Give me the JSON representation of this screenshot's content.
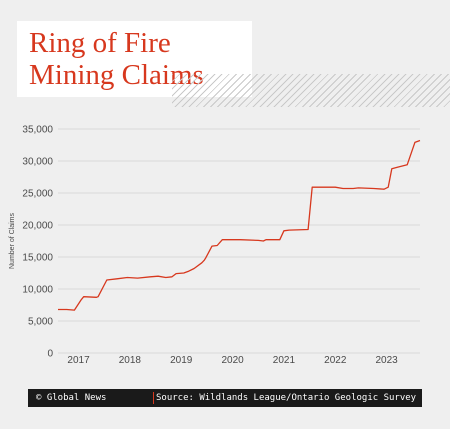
{
  "title": {
    "line1": "Ring of Fire",
    "line2": "Mining Claims"
  },
  "colors": {
    "accent": "#d7381e",
    "grid": "#dadada",
    "text": "#4a4a4a",
    "background": "#efefef"
  },
  "footer": {
    "credit": "© Global News",
    "source": "Source: Wildlands League/Ontario Geologic Survey"
  },
  "chart_data": {
    "type": "line",
    "title": "Ring of Fire Mining Claims",
    "xlabel": "",
    "ylabel": "Number of Claims",
    "xlim": [
      2016.6,
      2023.65
    ],
    "ylim": [
      0,
      35000
    ],
    "grid": true,
    "legend": "none",
    "y_ticks": [
      0,
      5000,
      10000,
      15000,
      20000,
      25000,
      30000,
      35000
    ],
    "y_tick_labels": [
      "0",
      "5,000",
      "10,000",
      "15,000",
      "20,000",
      "25,000",
      "30,000",
      "35,000"
    ],
    "x_ticks": [
      2017,
      2018,
      2019,
      2020,
      2021,
      2022,
      2023
    ],
    "x_tick_labels": [
      "2017",
      "2018",
      "2019",
      "2020",
      "2021",
      "2022",
      "2023"
    ],
    "series": [
      {
        "name": "",
        "x": [
          2016.6,
          2016.77,
          2016.92,
          2017.05,
          2017.1,
          2017.35,
          2017.38,
          2017.55,
          2017.75,
          2017.95,
          2018.15,
          2018.4,
          2018.55,
          2018.7,
          2018.82,
          2018.9,
          2019.05,
          2019.15,
          2019.25,
          2019.4,
          2019.45,
          2019.48,
          2019.6,
          2019.7,
          2019.8,
          2020.15,
          2020.5,
          2020.6,
          2020.65,
          2020.92,
          2021.0,
          2021.1,
          2021.47,
          2021.55,
          2021.62,
          2021.65,
          2022.0,
          2022.15,
          2022.35,
          2022.45,
          2022.75,
          2022.95,
          2023.03,
          2023.1,
          2023.2,
          2023.4,
          2023.55,
          2023.65
        ],
        "values": [
          6800,
          6800,
          6700,
          8300,
          8800,
          8700,
          8800,
          11400,
          11600,
          11800,
          11700,
          11900,
          12000,
          11800,
          11900,
          12400,
          12500,
          12800,
          13200,
          14100,
          14500,
          14900,
          16700,
          16800,
          17700,
          17700,
          17600,
          17500,
          17700,
          17700,
          19100,
          19200,
          19300,
          25900,
          25900,
          25900,
          25900,
          25700,
          25700,
          25800,
          25700,
          25600,
          25900,
          28800,
          29000,
          29400,
          32900,
          33200
        ]
      }
    ]
  }
}
